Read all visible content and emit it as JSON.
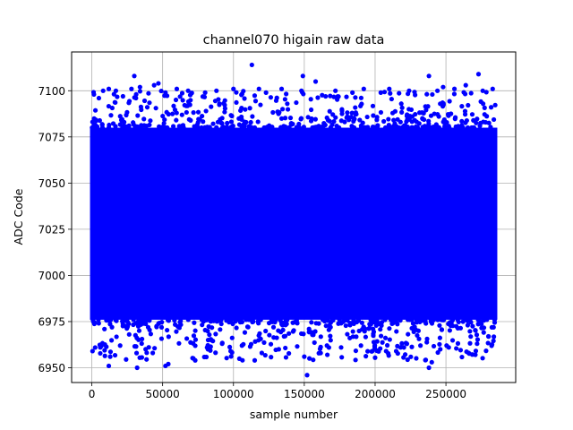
{
  "chart_data": {
    "type": "scatter",
    "title": "channel070 higain raw data",
    "xlabel": "sample number",
    "ylabel": "ADC Code",
    "xlim": [
      -14250,
      299250
    ],
    "ylim": [
      6942,
      7121
    ],
    "xticks": [
      0,
      50000,
      100000,
      150000,
      200000,
      250000
    ],
    "yticks": [
      6950,
      6975,
      7000,
      7025,
      7050,
      7075,
      7100
    ],
    "grid": true,
    "marker_color": "#0000ff",
    "n_samples": 285000,
    "dense_band": {
      "x": [
        0,
        285000
      ],
      "y": [
        6976,
        7080
      ]
    },
    "series": [
      {
        "outliers_high": [
          [
            1500,
            7098
          ],
          [
            5000,
            7096
          ],
          [
            8000,
            7100
          ],
          [
            12000,
            7101
          ],
          [
            17000,
            7100
          ],
          [
            22000,
            7097
          ],
          [
            28000,
            7101
          ],
          [
            30000,
            7108
          ],
          [
            34000,
            7102
          ],
          [
            44000,
            7103
          ],
          [
            47000,
            7104
          ],
          [
            52000,
            7099
          ],
          [
            60000,
            7101
          ],
          [
            68000,
            7100
          ],
          [
            80000,
            7099
          ],
          [
            88000,
            7100
          ],
          [
            100000,
            7101
          ],
          [
            113000,
            7114
          ],
          [
            118000,
            7101
          ],
          [
            123000,
            7099
          ],
          [
            134000,
            7101
          ],
          [
            148000,
            7100
          ],
          [
            149000,
            7108
          ],
          [
            158000,
            7105
          ],
          [
            172000,
            7100
          ],
          [
            184000,
            7099
          ],
          [
            192000,
            7101
          ],
          [
            204000,
            7099
          ],
          [
            210000,
            7101
          ],
          [
            224000,
            7100
          ],
          [
            238000,
            7108
          ],
          [
            244000,
            7100
          ],
          [
            248000,
            7102
          ],
          [
            256000,
            7101
          ],
          [
            264000,
            7103
          ],
          [
            273000,
            7109
          ],
          [
            276000,
            7100
          ],
          [
            283000,
            7101
          ]
        ],
        "outliers_low": [
          [
            500,
            6959
          ],
          [
            6000,
            6961
          ],
          [
            12000,
            6951
          ],
          [
            13000,
            6956
          ],
          [
            20000,
            6962
          ],
          [
            32000,
            6950
          ],
          [
            38000,
            6960
          ],
          [
            52000,
            6951
          ],
          [
            54000,
            6952
          ],
          [
            73000,
            6954
          ],
          [
            82000,
            6960
          ],
          [
            92000,
            6963
          ],
          [
            98000,
            6959
          ],
          [
            106000,
            6962
          ],
          [
            115000,
            6954
          ],
          [
            120000,
            6958
          ],
          [
            132000,
            6960
          ],
          [
            150000,
            6956
          ],
          [
            152000,
            6946
          ],
          [
            166000,
            6962
          ],
          [
            176000,
            6961
          ],
          [
            190000,
            6962
          ],
          [
            198000,
            6959
          ],
          [
            218000,
            6961
          ],
          [
            232000,
            6962
          ],
          [
            238000,
            6950
          ],
          [
            240000,
            6953
          ],
          [
            246000,
            6960
          ],
          [
            252000,
            6961
          ],
          [
            266000,
            6958
          ],
          [
            272000,
            6963
          ],
          [
            280000,
            6967
          ]
        ]
      }
    ]
  }
}
